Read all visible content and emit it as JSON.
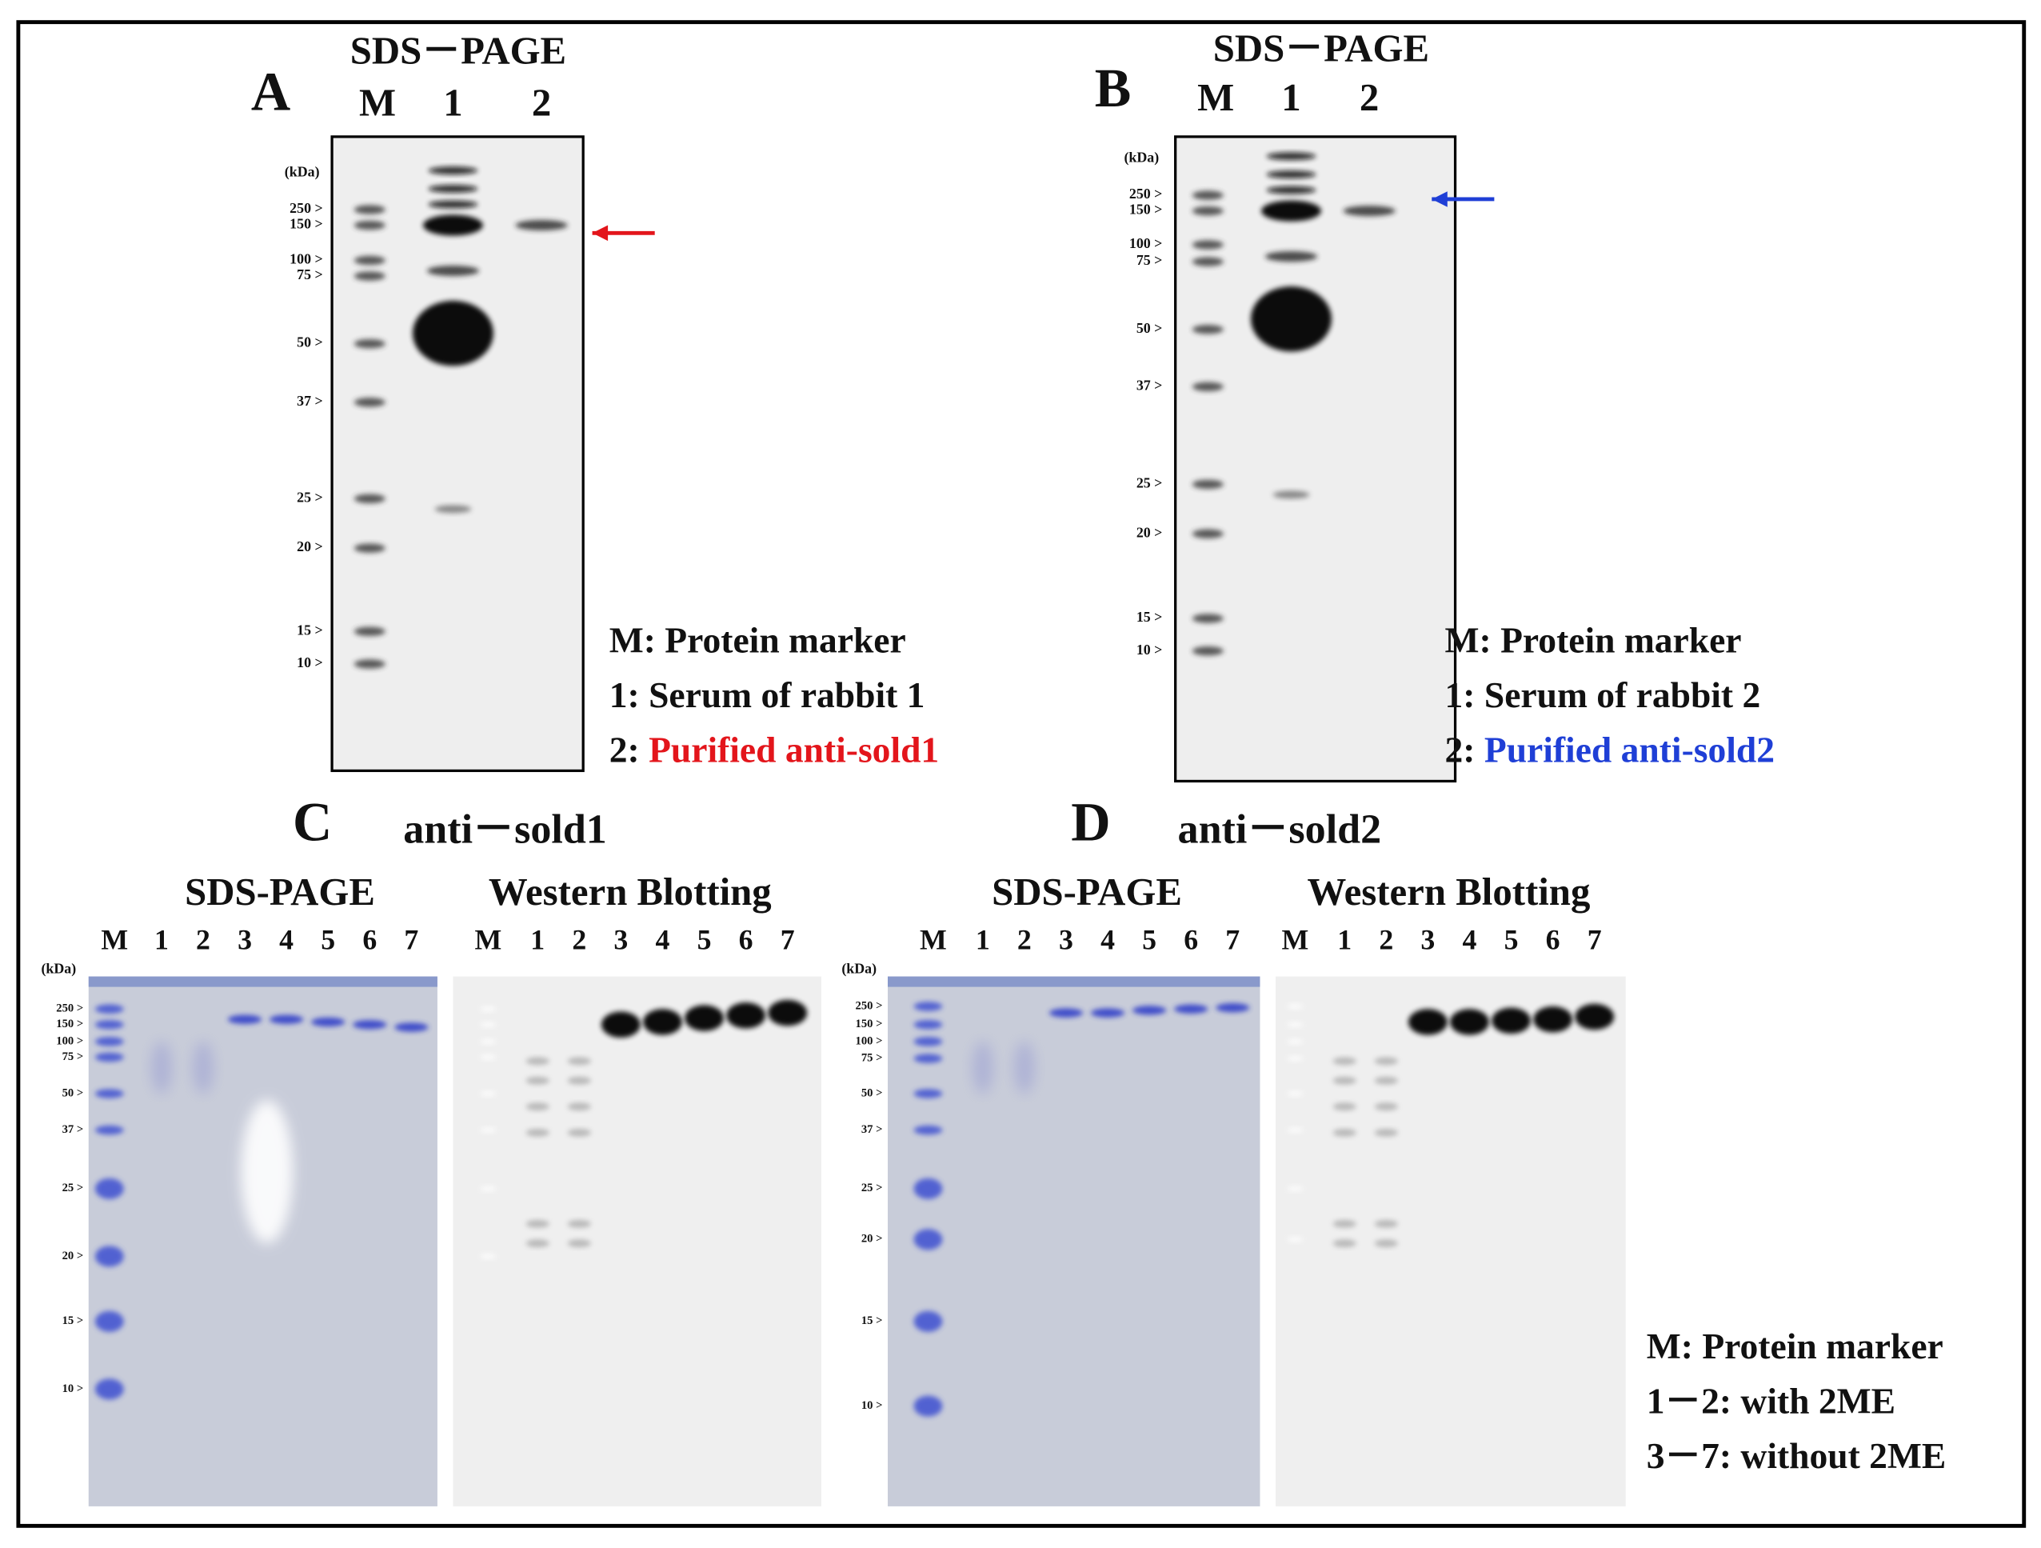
{
  "panels": [
    {
      "letter": "A",
      "method": "SDS－PAGE",
      "lanes": [
        "M",
        "1",
        "2"
      ],
      "unit": "(kDa)",
      "markers": [
        "250 >",
        "150 >",
        "100 >",
        "75 >",
        "50 >",
        "37 >",
        "25 >",
        "20 >",
        "15 >",
        "10 >"
      ],
      "legend": [
        {
          "key": "M:",
          "text": "Protein marker"
        },
        {
          "key": "1:",
          "text": "Serum of rabbit 1"
        },
        {
          "key": "2:",
          "text": "Purified anti-sold1",
          "color": "#e3151b"
        }
      ]
    },
    {
      "letter": "B",
      "method": "SDS－PAGE",
      "lanes": [
        "M",
        "1",
        "2"
      ],
      "unit": "(kDa)",
      "markers": [
        "250 >",
        "150 >",
        "100 >",
        "75 >",
        "50 >",
        "37 >",
        "25 >",
        "20 >",
        "15 >",
        "10 >"
      ],
      "legend": [
        {
          "key": "M:",
          "text": "Protein marker"
        },
        {
          "key": "1:",
          "text": "Serum of rabbit 2"
        },
        {
          "key": "2:",
          "text": "Purified anti-sold2",
          "color": "#1f3fd6"
        }
      ]
    },
    {
      "letter": "C",
      "antibody": "anti－sold1",
      "color": "#e3151b",
      "unit": "(kDa)",
      "markers": [
        "250 >",
        "150 >",
        "100 >",
        "75 >",
        "50 >",
        "37 >",
        "25 >",
        "20 >",
        "15 >",
        "10 >"
      ],
      "gels": [
        {
          "method": "SDS-PAGE",
          "lanes": [
            "M",
            "1",
            "2",
            "3",
            "4",
            "5",
            "6",
            "7"
          ]
        },
        {
          "method": "Western Blotting",
          "lanes": [
            "M",
            "1",
            "2",
            "3",
            "4",
            "5",
            "6",
            "7"
          ]
        }
      ]
    },
    {
      "letter": "D",
      "antibody": "anti－sold2",
      "color": "#1f3fd6",
      "unit": "(kDa)",
      "markers": [
        "250 >",
        "150 >",
        "100 >",
        "75 >",
        "50 >",
        "37 >",
        "25 >",
        "20 >",
        "15 >",
        "10 >"
      ],
      "gels": [
        {
          "method": "SDS-PAGE",
          "lanes": [
            "M",
            "1",
            "2",
            "3",
            "4",
            "5",
            "6",
            "7"
          ]
        },
        {
          "method": "Western Blotting",
          "lanes": [
            "M",
            "1",
            "2",
            "3",
            "4",
            "5",
            "6",
            "7"
          ]
        }
      ]
    }
  ],
  "legend": [
    "M: Protein marker",
    "1－2: with 2ME",
    "3－7: without 2ME"
  ]
}
